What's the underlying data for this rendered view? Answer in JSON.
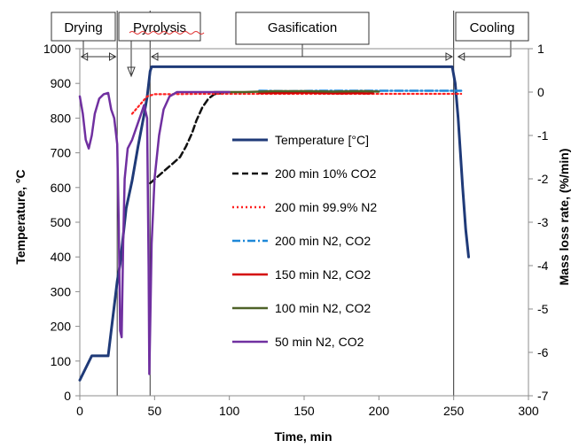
{
  "chart_data": {
    "type": "line",
    "xlabel": "Time, min",
    "ylabel_left": "Temperature, °C",
    "ylabel_right": "Mass loss rate, (%/min)",
    "xlim": [
      0,
      300
    ],
    "ylim_left": [
      0,
      1000
    ],
    "ylim_right": [
      -7,
      1
    ],
    "x_ticks": [
      0,
      50,
      100,
      150,
      200,
      250,
      300
    ],
    "y_left_ticks": [
      0,
      100,
      200,
      300,
      400,
      500,
      600,
      700,
      800,
      900,
      1000
    ],
    "y_right_ticks": [
      -7,
      -6,
      -5,
      -4,
      -3,
      -2,
      -1,
      0,
      1
    ],
    "grid": false,
    "legend_position": "center-right inside plot",
    "phases": [
      {
        "label": "Drying",
        "start": 0,
        "end": 25
      },
      {
        "label": "Pyrolysis",
        "start": 25,
        "end": 47
      },
      {
        "label": "Gasification",
        "start": 47,
        "end": 250
      },
      {
        "label": "Cooling",
        "start": 250,
        "end": 300
      }
    ],
    "phase_dividers": [
      25,
      47,
      250
    ],
    "series": [
      {
        "name": "Temperature [°C]",
        "axis": "left",
        "color": "#1f3a78",
        "style": "solid",
        "points": [
          [
            0,
            45
          ],
          [
            8,
            115
          ],
          [
            19,
            115
          ],
          [
            25,
            330
          ],
          [
            27,
            380
          ],
          [
            31,
            540
          ],
          [
            35,
            620
          ],
          [
            39,
            720
          ],
          [
            43,
            810
          ],
          [
            45,
            860
          ],
          [
            47,
            935
          ],
          [
            48,
            948
          ],
          [
            60,
            948
          ],
          [
            100,
            948
          ],
          [
            150,
            948
          ],
          [
            200,
            948
          ],
          [
            249,
            948
          ],
          [
            251,
            900
          ],
          [
            253,
            800
          ],
          [
            256,
            600
          ],
          [
            258,
            480
          ],
          [
            260,
            400
          ]
        ]
      },
      {
        "name": "200 min 10% CO2",
        "axis": "right",
        "color": "#111111",
        "style": "dashed",
        "points": [
          [
            47,
            -2.1
          ],
          [
            52,
            -1.95
          ],
          [
            57,
            -1.8
          ],
          [
            62,
            -1.65
          ],
          [
            67,
            -1.5
          ],
          [
            71,
            -1.25
          ],
          [
            75,
            -0.95
          ],
          [
            78,
            -0.65
          ],
          [
            82,
            -0.35
          ],
          [
            86,
            -0.15
          ],
          [
            90,
            -0.05
          ],
          [
            96,
            -0.02
          ]
        ]
      },
      {
        "name": "200 min 99.9% N2",
        "axis": "right",
        "color": "#ff2020",
        "style": "dotted",
        "points": [
          [
            35,
            -0.5
          ],
          [
            40,
            -0.3
          ],
          [
            45,
            -0.1
          ],
          [
            50,
            -0.05
          ],
          [
            60,
            -0.05
          ],
          [
            80,
            -0.04
          ],
          [
            100,
            -0.04
          ],
          [
            120,
            -0.04
          ],
          [
            140,
            -0.04
          ],
          [
            160,
            -0.04
          ],
          [
            180,
            -0.04
          ],
          [
            200,
            -0.04
          ],
          [
            220,
            -0.04
          ],
          [
            240,
            -0.04
          ],
          [
            255,
            -0.04
          ]
        ]
      },
      {
        "name": "200 min N2, CO2",
        "axis": "right",
        "color": "#1e88d8",
        "style": "dashdot",
        "points": [
          [
            120,
            0.03
          ],
          [
            140,
            0.02
          ],
          [
            160,
            0.03
          ],
          [
            180,
            0.03
          ],
          [
            200,
            0.03
          ],
          [
            220,
            0.03
          ],
          [
            240,
            0.03
          ],
          [
            255,
            0.03
          ]
        ]
      },
      {
        "name": "150 min N2, CO2",
        "axis": "right",
        "color": "#d40000",
        "style": "solid",
        "points": [
          [
            120,
            -0.02
          ],
          [
            140,
            -0.02
          ],
          [
            150,
            -0.01
          ],
          [
            160,
            -0.02
          ],
          [
            175,
            -0.03
          ],
          [
            185,
            -0.02
          ],
          [
            192,
            -0.03
          ],
          [
            196,
            -0.02
          ]
        ]
      },
      {
        "name": "100 min N2, CO2",
        "axis": "right",
        "color": "#4f6228",
        "style": "solid",
        "points": [
          [
            90,
            0.0
          ],
          [
            110,
            0.0
          ],
          [
            130,
            0.02
          ],
          [
            150,
            0.02
          ],
          [
            170,
            0.01
          ],
          [
            190,
            0.02
          ],
          [
            200,
            0.01
          ]
        ]
      },
      {
        "name": "50 min N2, CO2",
        "axis": "right",
        "color": "#7030a0",
        "style": "solid",
        "points": [
          [
            0,
            -0.1
          ],
          [
            2,
            -0.5
          ],
          [
            4,
            -1.1
          ],
          [
            6,
            -1.3
          ],
          [
            8,
            -1.0
          ],
          [
            10,
            -0.5
          ],
          [
            13,
            -0.15
          ],
          [
            16,
            -0.05
          ],
          [
            19,
            -0.02
          ],
          [
            21,
            -0.4
          ],
          [
            23,
            -0.6
          ],
          [
            25,
            -1.2
          ],
          [
            26,
            -3.0
          ],
          [
            27,
            -5.5
          ],
          [
            28,
            -5.65
          ],
          [
            29,
            -3.5
          ],
          [
            30,
            -2.0
          ],
          [
            32,
            -1.3
          ],
          [
            35,
            -1.1
          ],
          [
            38,
            -0.8
          ],
          [
            41,
            -0.5
          ],
          [
            43,
            -0.3
          ],
          [
            45,
            -0.6
          ],
          [
            46,
            -4.0
          ],
          [
            46.5,
            -6.5
          ],
          [
            47,
            -5.5
          ],
          [
            48,
            -3.5
          ],
          [
            50,
            -2.0
          ],
          [
            53,
            -1.0
          ],
          [
            56,
            -0.4
          ],
          [
            60,
            -0.1
          ],
          [
            65,
            0.0
          ],
          [
            75,
            0.0
          ],
          [
            90,
            0.0
          ],
          [
            100,
            0.0
          ]
        ]
      }
    ]
  }
}
